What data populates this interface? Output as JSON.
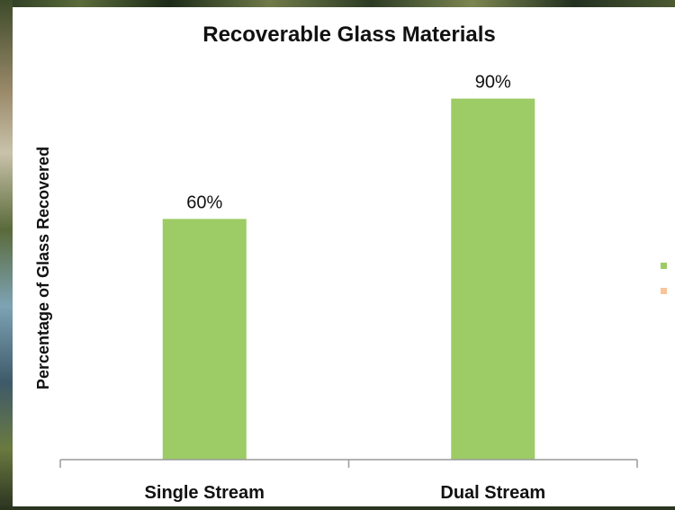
{
  "chart_data": {
    "type": "bar",
    "title": "Recoverable Glass Materials",
    "xlabel": "",
    "ylabel": "Percentage of Glass Recovered",
    "categories": [
      "Single Stream",
      "Dual Stream"
    ],
    "values": [
      60,
      90
    ],
    "data_labels": [
      "60%",
      "90%"
    ],
    "ylim": [
      0,
      100
    ],
    "grid": false,
    "bar_color": "#9dcb65",
    "legend_colors": [
      "#9dcb65",
      "#f9c49a"
    ],
    "legend_placement": "right"
  }
}
